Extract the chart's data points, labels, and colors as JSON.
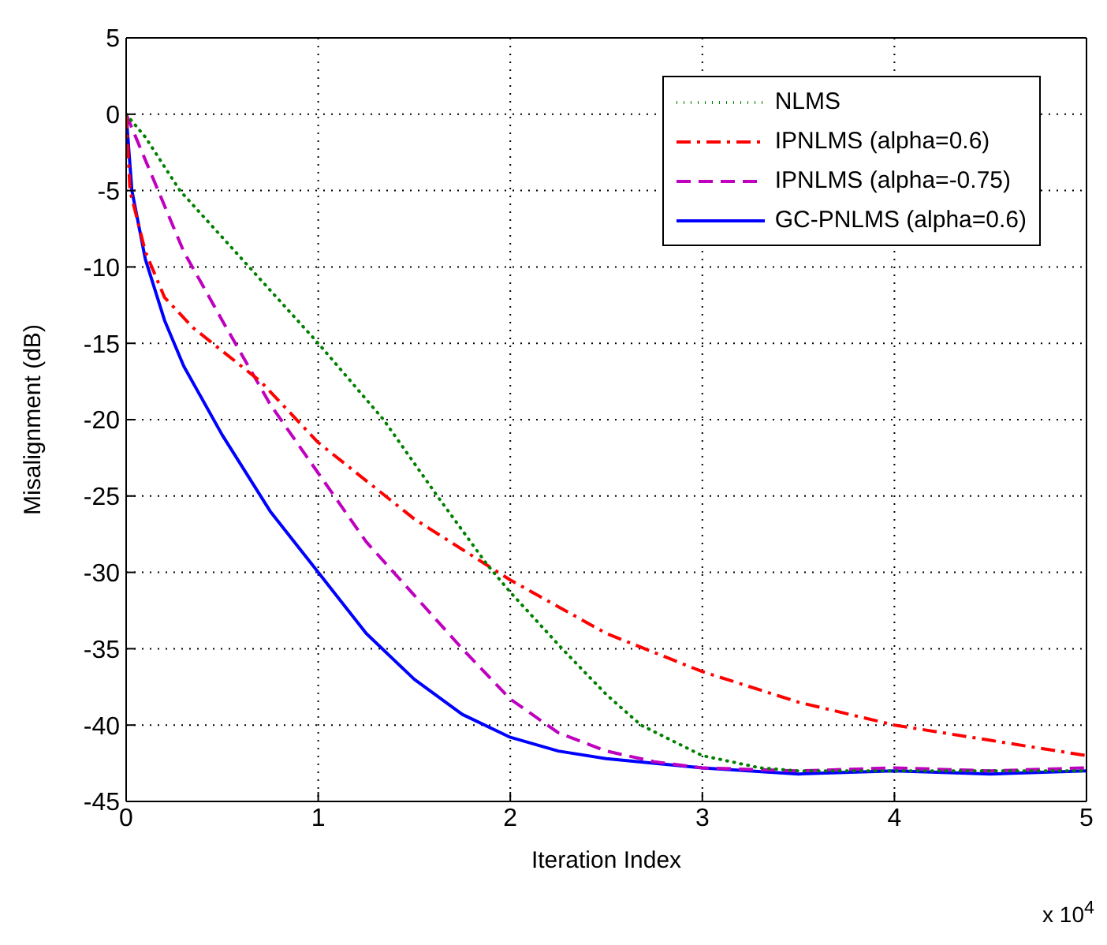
{
  "chart_data": {
    "type": "line",
    "xlabel": "Iteration Index",
    "ylabel": "Misalignment (dB)",
    "annotations": [
      "x 10$^{4}$"
    ],
    "xlim": [
      0,
      5
    ],
    "xticks": [
      0,
      1,
      2,
      3,
      4,
      5
    ],
    "ylim": [
      -45,
      5
    ],
    "yticks": [
      -45,
      -40,
      -35,
      -30,
      -25,
      -20,
      -15,
      -10,
      -5,
      0,
      5
    ],
    "grid": true,
    "legend": "top right",
    "series": [
      {
        "name": "NLMS",
        "color": "#008000",
        "line_style": "dotted",
        "x": [
          0,
          0.1,
          0.28,
          0.64,
          1.0,
          1.34,
          1.62,
          1.88,
          2.0,
          2.27,
          2.5,
          2.68,
          3.0,
          3.3,
          3.5,
          4,
          4.5,
          5
        ],
        "values": [
          0,
          -1.5,
          -5,
          -10,
          -15,
          -20,
          -25,
          -29.5,
          -31.3,
          -35,
          -38,
          -40,
          -42,
          -42.8,
          -43,
          -43,
          -43,
          -43
        ]
      },
      {
        "name": "IPNLMS (alpha=0.6)",
        "color": "#ff0000",
        "line_style": "dashdot",
        "x": [
          0,
          0.02,
          0.1,
          0.2,
          0.35,
          0.5,
          0.7,
          1.0,
          1.5,
          2.0,
          2.5,
          3.0,
          3.5,
          4.0,
          4.5,
          5
        ],
        "values": [
          0,
          -5,
          -9,
          -12,
          -14,
          -15.5,
          -17.5,
          -21.5,
          -26.5,
          -30.5,
          -34,
          -36.5,
          -38.5,
          -40,
          -41,
          -42
        ]
      },
      {
        "name": "IPNLMS (alpha=-0.75)",
        "color": "#bf00bf",
        "line_style": "dashed",
        "x": [
          0,
          0.1,
          0.3,
          0.5,
          0.75,
          1.0,
          1.25,
          1.5,
          1.75,
          2.0,
          2.25,
          2.5,
          2.75,
          3.0,
          3.5,
          4,
          4.5,
          5
        ],
        "values": [
          0,
          -3,
          -9,
          -13.5,
          -19,
          -23.5,
          -28,
          -31.5,
          -35,
          -38.3,
          -40.5,
          -41.7,
          -42.4,
          -42.8,
          -43,
          -42.8,
          -43,
          -42.8
        ]
      },
      {
        "name": "GC-PNLMS (alpha=0.6)",
        "color": "#0000ff",
        "line_style": "solid",
        "x": [
          0,
          0.03,
          0.1,
          0.2,
          0.3,
          0.5,
          0.75,
          1.0,
          1.25,
          1.5,
          1.75,
          2.0,
          2.25,
          2.5,
          3.0,
          3.5,
          4,
          4.5,
          5
        ],
        "values": [
          0,
          -5,
          -9.5,
          -13.5,
          -16.5,
          -21,
          -26,
          -30,
          -34,
          -37,
          -39.3,
          -40.8,
          -41.7,
          -42.2,
          -42.8,
          -43.2,
          -43,
          -43.2,
          -43
        ]
      }
    ]
  }
}
